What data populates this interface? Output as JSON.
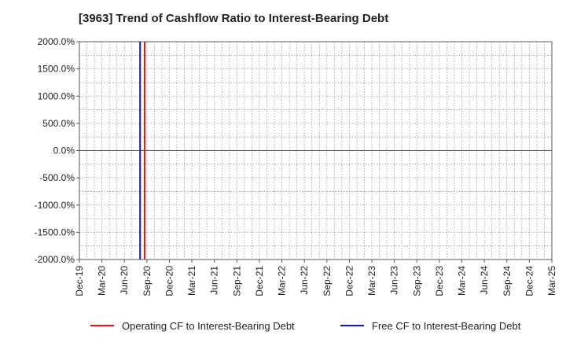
{
  "chart_data": {
    "type": "line",
    "title": "[3963]  Trend of Cashflow Ratio to Interest-Bearing Debt",
    "xlabel": "",
    "ylabel": "",
    "ylim": [
      -2000,
      2000
    ],
    "yticks": [
      2000,
      1500,
      1000,
      500,
      0,
      -500,
      -1000,
      -1500,
      -2000
    ],
    "ytick_labels": [
      "2000.0%",
      "1500.0%",
      "1000.0%",
      "500.0%",
      "0.0%",
      "-500.0%",
      "-1000.0%",
      "-1500.0%",
      "-2000.0%"
    ],
    "x_tick_labels": [
      "Dec-19",
      "Mar-20",
      "Jun-20",
      "Sep-20",
      "Dec-20",
      "Mar-21",
      "Jun-21",
      "Sep-21",
      "Dec-21",
      "Mar-22",
      "Jun-22",
      "Sep-22",
      "Dec-22",
      "Mar-23",
      "Jun-23",
      "Sep-23",
      "Dec-23",
      "Mar-24",
      "Jun-24",
      "Sep-24",
      "Dec-24",
      "Mar-25"
    ],
    "series": [
      {
        "name": "Operating CF to Interest-Bearing Debt",
        "color": "#e8141b",
        "x_quarter_index": 2.9,
        "y_span": [
          -2000,
          2000
        ]
      },
      {
        "name": "Free CF to Interest-Bearing Debt",
        "color": "#1018c8",
        "x_quarter_index": 2.7,
        "y_span": [
          -2000,
          2000
        ]
      }
    ],
    "legend_position": "bottom"
  }
}
